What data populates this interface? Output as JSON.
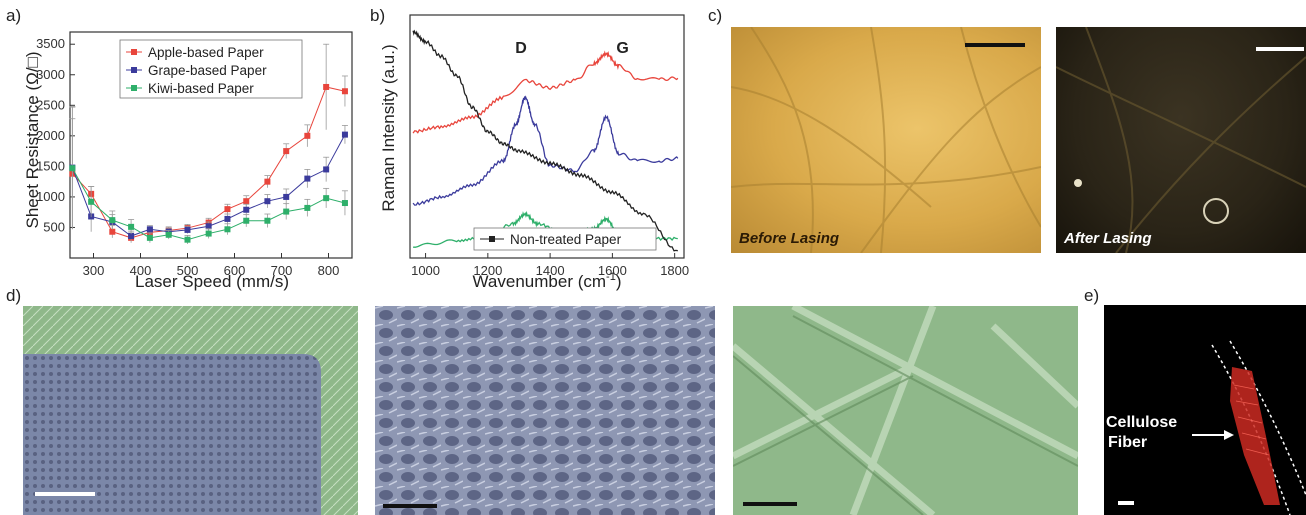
{
  "panels": {
    "a": "a)",
    "b": "b)",
    "c": "c)",
    "d": "d)",
    "e": "e)"
  },
  "chart_data": [
    {
      "type": "line",
      "xlabel": "Laser Speed (mm/s)",
      "ylabel": "Sheet Resistance (Ω/□)",
      "xlim": [
        250,
        850
      ],
      "ylim": [
        0,
        3700
      ],
      "x_ticks": [
        300,
        400,
        500,
        600,
        700,
        800
      ],
      "y_ticks": [
        500,
        1000,
        1500,
        2000,
        2500,
        3000,
        3500
      ],
      "legend_position": "top-right",
      "grid": false,
      "series": [
        {
          "name": "Apple-based Paper",
          "color": "#e8453c",
          "x": [
            255,
            295,
            340,
            380,
            420,
            460,
            500,
            545,
            585,
            625,
            670,
            710,
            755,
            795,
            835
          ],
          "y": [
            1380,
            1050,
            430,
            330,
            420,
            450,
            490,
            580,
            800,
            930,
            1250,
            1750,
            2000,
            2800,
            2730
          ],
          "err": [
            900,
            120,
            100,
            80,
            70,
            60,
            60,
            70,
            80,
            90,
            100,
            120,
            180,
            700,
            250
          ]
        },
        {
          "name": "Grape-based Paper",
          "color": "#3b3b9c",
          "x": [
            255,
            295,
            340,
            380,
            420,
            460,
            500,
            545,
            585,
            625,
            670,
            710,
            755,
            795,
            835
          ],
          "y": [
            1480,
            680,
            590,
            360,
            470,
            430,
            460,
            520,
            640,
            790,
            930,
            1000,
            1300,
            1450,
            2020
          ],
          "err": [
            1000,
            250,
            120,
            80,
            60,
            60,
            60,
            70,
            80,
            90,
            110,
            130,
            150,
            200,
            150
          ]
        },
        {
          "name": "Kiwi-based Paper",
          "color": "#2eaf6a",
          "x": [
            255,
            295,
            340,
            380,
            420,
            460,
            500,
            545,
            585,
            625,
            670,
            710,
            755,
            795,
            835
          ],
          "y": [
            1470,
            920,
            620,
            510,
            330,
            380,
            300,
            400,
            470,
            610,
            610,
            760,
            820,
            980,
            900
          ],
          "err": [
            1000,
            250,
            150,
            120,
            80,
            70,
            70,
            80,
            90,
            100,
            110,
            130,
            140,
            160,
            200
          ]
        }
      ]
    },
    {
      "type": "line",
      "xlabel": "Wavenumber (cm",
      "xlabel_sup": "-1",
      "xlabel_end": ")",
      "ylabel": "Raman Intensity (a.u.)",
      "xlim": [
        950,
        1830
      ],
      "x_ticks": [
        1000,
        1200,
        1400,
        1600,
        1800
      ],
      "peak_labels": [
        "D",
        "G"
      ],
      "legend_position": "bottom-right",
      "series": [
        {
          "name": "",
          "color": "#e8453c",
          "x": [
            960,
            1050,
            1150,
            1250,
            1320,
            1400,
            1480,
            1540,
            1580,
            1620,
            1680,
            1750,
            1810
          ],
          "y": [
            0.52,
            0.54,
            0.58,
            0.66,
            0.73,
            0.7,
            0.73,
            0.8,
            0.84,
            0.79,
            0.74,
            0.735,
            0.74
          ]
        },
        {
          "name": "",
          "color": "#3b3b9c",
          "x": [
            960,
            1050,
            1150,
            1250,
            1290,
            1320,
            1350,
            1400,
            1480,
            1540,
            1580,
            1620,
            1680,
            1750,
            1810
          ],
          "y": [
            0.22,
            0.25,
            0.3,
            0.4,
            0.55,
            0.66,
            0.55,
            0.38,
            0.36,
            0.44,
            0.58,
            0.43,
            0.4,
            0.4,
            0.41
          ]
        },
        {
          "name": "",
          "color": "#2eaf6a",
          "x": [
            960,
            1100,
            1200,
            1280,
            1320,
            1360,
            1450,
            1540,
            1580,
            1620,
            1700,
            1810
          ],
          "y": [
            0.05,
            0.07,
            0.09,
            0.14,
            0.18,
            0.14,
            0.1,
            0.12,
            0.16,
            0.1,
            0.08,
            0.08
          ]
        },
        {
          "name": "Non-treated Paper",
          "color": "#222222",
          "x": [
            960,
            1000,
            1050,
            1100,
            1150,
            1200,
            1250,
            1300,
            1400,
            1500,
            1600,
            1700,
            1810
          ],
          "y": [
            0.93,
            0.89,
            0.83,
            0.75,
            0.62,
            0.52,
            0.47,
            0.44,
            0.39,
            0.34,
            0.27,
            0.18,
            0.03
          ]
        }
      ]
    }
  ],
  "photos": {
    "before_label": "Before Lasing",
    "after_label": "After Lasing",
    "fiber_label_line1": "Cellulose",
    "fiber_label_line2": "Fiber"
  },
  "colors": {
    "photo_before": "#d9a94a",
    "photo_after": "#2a2417",
    "sem_blue": "#7b87a8",
    "sem_green": "#8fb88a",
    "fiber_red": "#cc2a22"
  }
}
